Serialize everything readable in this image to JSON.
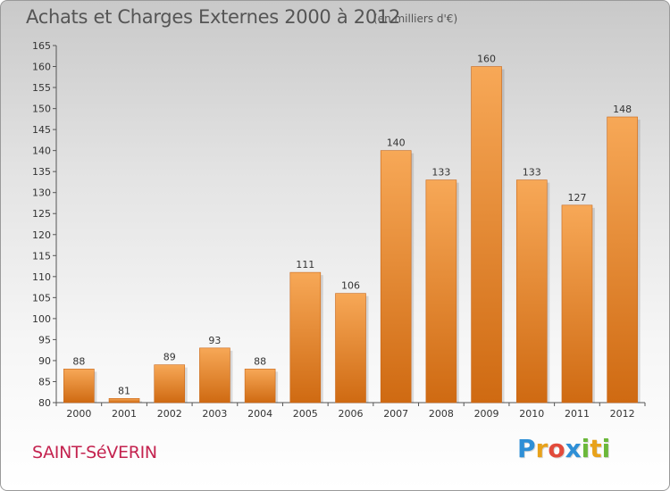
{
  "header": {
    "title": "Achats et Charges Externes 2000 à 2012",
    "unit": "(en milliers d'€)"
  },
  "footer": {
    "commune": "SAINT-SéVERIN",
    "logo": {
      "letters": [
        "P",
        "r",
        "o",
        "x",
        "i",
        "t",
        "i"
      ],
      "colors": [
        "#2e8fd6",
        "#e8a21b",
        "#e24b3b",
        "#2e8fd6",
        "#6bb83a",
        "#e8a21b",
        "#6bb83a"
      ]
    }
  },
  "colors": {
    "bar_top": "#f7a857",
    "bar_bottom": "#cf6a12",
    "accent": "#c4234f"
  },
  "chart_data": {
    "type": "bar",
    "title": "Achats et Charges Externes 2000 à 2012",
    "xlabel": "",
    "ylabel": "",
    "categories": [
      "2000",
      "2001",
      "2002",
      "2003",
      "2004",
      "2005",
      "2006",
      "2007",
      "2008",
      "2009",
      "2010",
      "2011",
      "2012"
    ],
    "values": [
      88,
      81,
      89,
      93,
      88,
      111,
      106,
      140,
      133,
      160,
      133,
      127,
      148
    ],
    "ylim": [
      80,
      165
    ],
    "yticks": [
      80,
      85,
      90,
      95,
      100,
      105,
      110,
      115,
      120,
      125,
      130,
      135,
      140,
      145,
      150,
      155,
      160,
      165
    ],
    "grid": false,
    "data_labels": true
  }
}
